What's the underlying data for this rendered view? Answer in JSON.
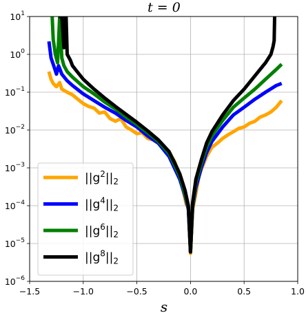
{
  "chart_data": {
    "type": "line",
    "title": "t = 0",
    "xlabel": "s",
    "ylabel": "",
    "xlim": [
      -1.5,
      1.0
    ],
    "ylim": [
      1e-06,
      10
    ],
    "yscale": "log",
    "grid": true,
    "legend_placement": "lower-left",
    "x_ticks": [
      -1.5,
      -1.0,
      -0.5,
      0.0,
      0.5,
      1.0
    ],
    "x_tick_labels": [
      "−1.5",
      "−1.0",
      "−0.5",
      "0.0",
      "0.5",
      "1.0"
    ],
    "y_ticks": [
      1e-06,
      1e-05,
      0.0001,
      0.001,
      0.01,
      0.1,
      1,
      10
    ],
    "y_tick_labels": [
      {
        "base": "10",
        "exp": "−6"
      },
      {
        "base": "10",
        "exp": "−5"
      },
      {
        "base": "10",
        "exp": "−4"
      },
      {
        "base": "10",
        "exp": "−3"
      },
      {
        "base": "10",
        "exp": "−2"
      },
      {
        "base": "10",
        "exp": "−1"
      },
      {
        "base": "10",
        "exp": "0"
      },
      {
        "base": "10",
        "exp": "1"
      }
    ],
    "series": [
      {
        "name": "||g²||₂",
        "legend": {
          "pre": "||g",
          "sup": "2",
          "mid": "||",
          "sub": "2"
        },
        "color": "#ffa500",
        "x": [
          -1.32,
          -1.3,
          -1.28,
          -1.25,
          -1.22,
          -1.2,
          -1.15,
          -1.1,
          -1.05,
          -1.0,
          -0.95,
          -0.9,
          -0.85,
          -0.8,
          -0.75,
          -0.7,
          -0.65,
          -0.6,
          -0.55,
          -0.5,
          -0.45,
          -0.4,
          -0.35,
          -0.3,
          -0.25,
          -0.2,
          -0.15,
          -0.1,
          -0.08,
          -0.06,
          -0.04,
          -0.02,
          0.0,
          0.02,
          0.04,
          0.06,
          0.08,
          0.1,
          0.15,
          0.2,
          0.25,
          0.3,
          0.35,
          0.4,
          0.45,
          0.5,
          0.55,
          0.6,
          0.65,
          0.7,
          0.75,
          0.8,
          0.85
        ],
        "y": [
          0.35,
          0.22,
          0.17,
          0.14,
          0.18,
          0.12,
          0.1,
          0.085,
          0.065,
          0.05,
          0.042,
          0.038,
          0.028,
          0.03,
          0.02,
          0.017,
          0.02,
          0.012,
          0.01,
          0.008,
          0.0085,
          0.006,
          0.0055,
          0.0045,
          0.0035,
          0.0025,
          0.0015,
          0.0006,
          0.00035,
          0.0002,
          0.00011,
          9e-05,
          5.5e-06,
          8e-05,
          0.00015,
          0.0003,
          0.0006,
          0.0009,
          0.002,
          0.0035,
          0.0045,
          0.006,
          0.0075,
          0.009,
          0.011,
          0.012,
          0.015,
          0.017,
          0.022,
          0.025,
          0.03,
          0.04,
          0.06
        ]
      },
      {
        "name": "||g⁴||₂",
        "legend": {
          "pre": "||g",
          "sup": "4",
          "mid": "||",
          "sub": "2"
        },
        "color": "#0000ff",
        "x": [
          -1.32,
          -1.3,
          -1.27,
          -1.25,
          -1.23,
          -1.2,
          -1.15,
          -1.1,
          -1.0,
          -0.9,
          -0.8,
          -0.7,
          -0.6,
          -0.5,
          -0.4,
          -0.3,
          -0.2,
          -0.15,
          -0.1,
          -0.05,
          -0.02,
          0.0,
          0.02,
          0.05,
          0.1,
          0.15,
          0.2,
          0.3,
          0.4,
          0.5,
          0.6,
          0.7,
          0.8,
          0.85
        ],
        "y": [
          2.2,
          0.8,
          0.45,
          0.3,
          0.5,
          0.3,
          0.2,
          0.15,
          0.09,
          0.06,
          0.04,
          0.028,
          0.018,
          0.012,
          0.007,
          0.0045,
          0.002,
          0.001,
          0.0005,
          0.00018,
          8e-05,
          6e-06,
          9e-05,
          0.0003,
          0.001,
          0.0025,
          0.005,
          0.012,
          0.025,
          0.04,
          0.065,
          0.1,
          0.15,
          0.17
        ]
      },
      {
        "name": "||g⁶||₂",
        "legend": {
          "pre": "||g",
          "sup": "6",
          "mid": "||",
          "sub": "2"
        },
        "color": "#008000",
        "x": [
          -1.29,
          -1.28,
          -1.26,
          -1.24,
          -1.22,
          -1.2,
          -1.18,
          -1.15,
          -1.1,
          -1.0,
          -0.9,
          -0.8,
          -0.7,
          -0.6,
          -0.5,
          -0.4,
          -0.3,
          -0.2,
          -0.15,
          -0.1,
          -0.05,
          -0.02,
          0.0,
          0.02,
          0.05,
          0.1,
          0.15,
          0.2,
          0.3,
          0.4,
          0.5,
          0.6,
          0.7,
          0.8,
          0.85
        ],
        "y": [
          10,
          2.5,
          1.0,
          0.6,
          10,
          0.8,
          0.5,
          0.35,
          0.25,
          0.14,
          0.09,
          0.055,
          0.036,
          0.022,
          0.014,
          0.0085,
          0.005,
          0.0024,
          0.0012,
          0.0006,
          0.0002,
          9e-05,
          6e-06,
          0.0001,
          0.0004,
          0.0013,
          0.0035,
          0.007,
          0.018,
          0.04,
          0.07,
          0.12,
          0.22,
          0.4,
          0.55
        ]
      },
      {
        "name": "||g⁸||₂",
        "legend": {
          "pre": "||g",
          "sup": "8",
          "mid": "||",
          "sub": "2"
        },
        "color": "#000000",
        "x": [
          -1.23,
          -1.22,
          -1.2,
          -1.18,
          -1.17,
          -1.16,
          -1.15,
          -1.12,
          -1.1,
          -1.05,
          -1.0,
          -0.9,
          -0.8,
          -0.7,
          -0.6,
          -0.5,
          -0.4,
          -0.3,
          -0.2,
          -0.15,
          -0.1,
          -0.05,
          -0.02,
          0.0,
          0.02,
          0.05,
          0.1,
          0.15,
          0.2,
          0.3,
          0.4,
          0.5,
          0.6,
          0.7,
          0.75,
          0.77,
          0.78,
          0.785
        ],
        "y": [
          10,
          10,
          10,
          1.5,
          10,
          10,
          1.0,
          0.7,
          0.5,
          0.33,
          0.22,
          0.12,
          0.07,
          0.042,
          0.026,
          0.016,
          0.0095,
          0.0055,
          0.0027,
          0.0014,
          0.0007,
          0.00025,
          0.0001,
          6e-06,
          0.00012,
          0.0005,
          0.0016,
          0.0045,
          0.009,
          0.025,
          0.06,
          0.12,
          0.27,
          0.6,
          1.0,
          1.6,
          2.3,
          10
        ]
      }
    ]
  }
}
